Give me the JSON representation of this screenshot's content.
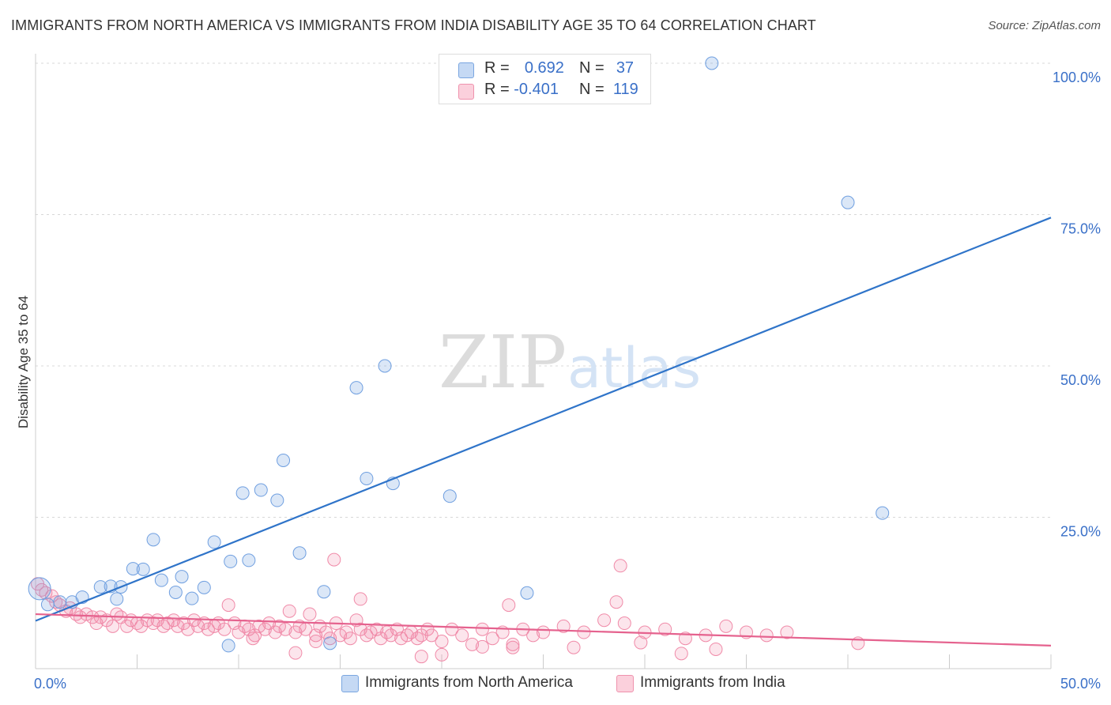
{
  "header": {
    "title": "IMMIGRANTS FROM NORTH AMERICA VS IMMIGRANTS FROM INDIA DISABILITY AGE 35 TO 64 CORRELATION CHART",
    "source": "Source: ZipAtlas.com"
  },
  "watermark": {
    "zip": "ZIP",
    "atlas": "atlas"
  },
  "legend_top": {
    "row1": {
      "r_label": "R =",
      "r_value": "0.692",
      "n_label": "N =",
      "n_value": "37"
    },
    "row2": {
      "r_label": "R =",
      "r_value": "-0.401",
      "n_label": "N =",
      "n_value": "119"
    }
  },
  "chart_data": {
    "type": "scatter",
    "title": "IMMIGRANTS FROM NORTH AMERICA VS IMMIGRANTS FROM INDIA DISABILITY AGE 35 TO 64 CORRELATION CHART",
    "xlabel": "",
    "ylabel": "Disability Age 35 to 64",
    "xlim": [
      0,
      50
    ],
    "ylim": [
      0,
      100
    ],
    "x_tick_labels": [
      "0.0%",
      "50.0%"
    ],
    "y_ticks": [
      25,
      50,
      75,
      100
    ],
    "y_tick_labels": [
      "25.0%",
      "50.0%",
      "75.0%",
      "100.0%"
    ],
    "grid": true,
    "legend_position": "top-center",
    "colors": {
      "north_america": "#6f9fe0",
      "india": "#f08aa8",
      "na_line": "#2f74c9",
      "india_line": "#e5628e",
      "tick_label": "#3a70c8"
    },
    "series": [
      {
        "name": "Immigrants from North America",
        "r": 0.692,
        "n": 37,
        "trend": {
          "x": [
            0,
            50
          ],
          "y": [
            7.9,
            74.5
          ]
        },
        "points": [
          [
            0.2,
            13.2
          ],
          [
            0.6,
            10.6
          ],
          [
            1.2,
            11.0
          ],
          [
            1.8,
            11.0
          ],
          [
            2.3,
            11.8
          ],
          [
            3.2,
            13.5
          ],
          [
            3.7,
            13.6
          ],
          [
            4.2,
            13.5
          ],
          [
            4.8,
            16.5
          ],
          [
            5.3,
            16.4
          ],
          [
            5.8,
            21.3
          ],
          [
            6.2,
            14.6
          ],
          [
            6.9,
            12.6
          ],
          [
            7.2,
            15.2
          ],
          [
            7.7,
            11.6
          ],
          [
            8.3,
            13.4
          ],
          [
            8.8,
            20.9
          ],
          [
            9.6,
            17.7
          ],
          [
            10.2,
            29.0
          ],
          [
            10.5,
            17.9
          ],
          [
            11.1,
            29.5
          ],
          [
            11.9,
            27.8
          ],
          [
            12.2,
            34.4
          ],
          [
            13.0,
            19.1
          ],
          [
            14.2,
            12.7
          ],
          [
            14.5,
            4.2
          ],
          [
            15.8,
            46.4
          ],
          [
            16.3,
            31.4
          ],
          [
            17.2,
            50.0
          ],
          [
            17.6,
            30.6
          ],
          [
            20.4,
            28.5
          ],
          [
            24.2,
            12.5
          ],
          [
            33.3,
            100.0
          ],
          [
            40.0,
            77.0
          ],
          [
            41.7,
            25.7
          ],
          [
            9.5,
            3.8
          ],
          [
            4.0,
            11.5
          ]
        ]
      },
      {
        "name": "Immigrants from India",
        "r": -0.401,
        "n": 119,
        "trend": {
          "x": [
            0,
            50
          ],
          "y": [
            9.0,
            3.8
          ]
        },
        "points": [
          [
            0.1,
            14.0
          ],
          [
            0.3,
            13.0
          ],
          [
            0.5,
            12.5
          ],
          [
            0.8,
            12.0
          ],
          [
            1.0,
            11.0
          ],
          [
            1.2,
            10.5
          ],
          [
            1.5,
            9.5
          ],
          [
            1.7,
            10.0
          ],
          [
            2.0,
            9.0
          ],
          [
            2.2,
            8.5
          ],
          [
            2.5,
            9.0
          ],
          [
            2.8,
            8.5
          ],
          [
            3.0,
            7.5
          ],
          [
            3.2,
            8.5
          ],
          [
            3.5,
            8.0
          ],
          [
            3.8,
            7.0
          ],
          [
            4.0,
            9.0
          ],
          [
            4.2,
            8.5
          ],
          [
            4.5,
            7.0
          ],
          [
            4.7,
            8.0
          ],
          [
            5.0,
            7.5
          ],
          [
            5.2,
            7.0
          ],
          [
            5.5,
            8.0
          ],
          [
            5.8,
            7.5
          ],
          [
            6.0,
            8.0
          ],
          [
            6.3,
            7.0
          ],
          [
            6.5,
            7.5
          ],
          [
            6.8,
            8.0
          ],
          [
            7.0,
            7.0
          ],
          [
            7.3,
            7.5
          ],
          [
            7.5,
            6.5
          ],
          [
            7.8,
            8.0
          ],
          [
            8.0,
            7.0
          ],
          [
            8.3,
            7.5
          ],
          [
            8.5,
            6.5
          ],
          [
            8.8,
            7.0
          ],
          [
            9.0,
            7.5
          ],
          [
            9.3,
            6.5
          ],
          [
            9.5,
            10.5
          ],
          [
            9.8,
            7.5
          ],
          [
            10.0,
            6.0
          ],
          [
            10.3,
            7.0
          ],
          [
            10.5,
            6.5
          ],
          [
            10.8,
            5.5
          ],
          [
            11.0,
            7.0
          ],
          [
            11.3,
            6.5
          ],
          [
            11.5,
            7.5
          ],
          [
            11.8,
            6.0
          ],
          [
            12.0,
            7.0
          ],
          [
            12.3,
            6.5
          ],
          [
            12.5,
            9.5
          ],
          [
            12.8,
            6.0
          ],
          [
            13.0,
            7.0
          ],
          [
            13.3,
            6.5
          ],
          [
            13.5,
            9.0
          ],
          [
            13.8,
            5.5
          ],
          [
            14.0,
            7.0
          ],
          [
            14.3,
            6.0
          ],
          [
            14.5,
            5.0
          ],
          [
            14.8,
            7.5
          ],
          [
            15.0,
            5.5
          ],
          [
            15.3,
            6.0
          ],
          [
            15.5,
            5.0
          ],
          [
            15.8,
            8.0
          ],
          [
            16.0,
            6.5
          ],
          [
            16.3,
            5.5
          ],
          [
            16.5,
            6.0
          ],
          [
            16.8,
            6.5
          ],
          [
            17.0,
            5.0
          ],
          [
            17.3,
            6.0
          ],
          [
            17.5,
            5.5
          ],
          [
            17.8,
            6.5
          ],
          [
            18.0,
            5.0
          ],
          [
            18.3,
            5.5
          ],
          [
            18.5,
            6.0
          ],
          [
            18.8,
            5.0
          ],
          [
            19.0,
            5.5
          ],
          [
            19.3,
            6.5
          ],
          [
            19.5,
            5.5
          ],
          [
            20.0,
            4.5
          ],
          [
            20.5,
            6.5
          ],
          [
            21.0,
            5.5
          ],
          [
            21.5,
            4.0
          ],
          [
            22.0,
            6.5
          ],
          [
            22.5,
            5.0
          ],
          [
            23.0,
            6.0
          ],
          [
            23.5,
            4.0
          ],
          [
            24.0,
            6.5
          ],
          [
            24.5,
            5.5
          ],
          [
            25.0,
            6.0
          ],
          [
            26.0,
            7.0
          ],
          [
            27.0,
            6.0
          ],
          [
            28.0,
            8.0
          ],
          [
            29.0,
            7.5
          ],
          [
            30.0,
            6.0
          ],
          [
            31.0,
            6.5
          ],
          [
            32.0,
            5.0
          ],
          [
            33.0,
            5.5
          ],
          [
            34.0,
            7.0
          ],
          [
            35.0,
            6.0
          ],
          [
            36.0,
            5.5
          ],
          [
            37.0,
            6.0
          ],
          [
            16.0,
            11.5
          ],
          [
            14.7,
            18.0
          ],
          [
            23.3,
            10.5
          ],
          [
            28.8,
            17.0
          ],
          [
            28.6,
            11.0
          ],
          [
            29.8,
            4.3
          ],
          [
            31.8,
            2.5
          ],
          [
            12.8,
            2.6
          ],
          [
            19.0,
            2.0
          ],
          [
            20.0,
            2.3
          ],
          [
            22.0,
            3.6
          ],
          [
            23.5,
            3.5
          ],
          [
            33.5,
            3.2
          ],
          [
            40.5,
            4.2
          ],
          [
            26.5,
            3.5
          ],
          [
            10.7,
            5.0
          ],
          [
            13.8,
            4.5
          ]
        ]
      }
    ]
  },
  "legend_bottom": {
    "item1": "Immigrants from North America",
    "item2": "Immigrants from India"
  }
}
